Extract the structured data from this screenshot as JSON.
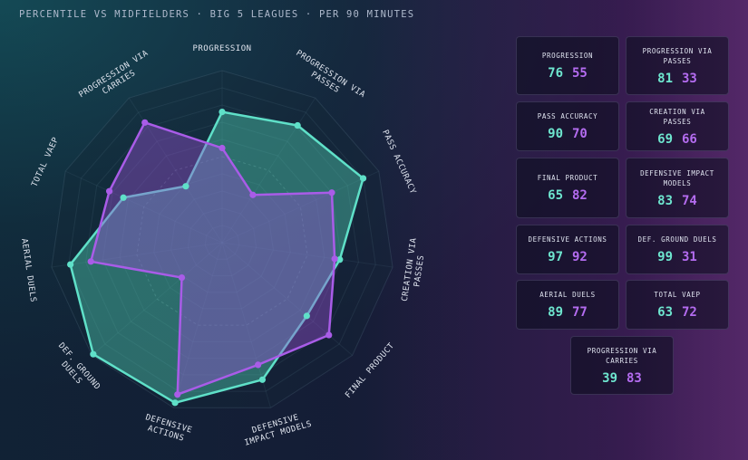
{
  "title": "PERCENTILE VS MIDFIELDERS · BIG 5 LEAGUES · PER 90 MINUTES",
  "colors": {
    "player1": "#5fe0c8",
    "player2": "#a95ce8"
  },
  "chart_data": {
    "type": "radar",
    "axes": [
      "PROGRESSION",
      "PROGRESSION VIA PASSES",
      "PASS ACCURACY",
      "CREATION VIA PASSES",
      "FINAL PRODUCT",
      "DEFENSIVE IMPACT MODELS",
      "DEFENSIVE ACTIONS",
      "DEF. GROUND DUELS",
      "AERIAL DUELS",
      "TOTAL VAEP",
      "PROGRESSION VIA CARRIES"
    ],
    "range": [
      0,
      100
    ],
    "series": [
      {
        "values": [
          76,
          81,
          90,
          69,
          65,
          83,
          97,
          99,
          89,
          63,
          39
        ]
      },
      {
        "values": [
          55,
          33,
          70,
          66,
          82,
          74,
          92,
          31,
          77,
          72,
          83
        ]
      }
    ]
  },
  "cards": [
    {
      "label": "PROGRESSION",
      "v1": "76",
      "v2": "55"
    },
    {
      "label": "PROGRESSION VIA PASSES",
      "v1": "81",
      "v2": "33"
    },
    {
      "label": "PASS ACCURACY",
      "v1": "90",
      "v2": "70"
    },
    {
      "label": "CREATION VIA PASSES",
      "v1": "69",
      "v2": "66"
    },
    {
      "label": "FINAL PRODUCT",
      "v1": "65",
      "v2": "82"
    },
    {
      "label": "DEFENSIVE IMPACT MODELS",
      "v1": "83",
      "v2": "74"
    },
    {
      "label": "DEFENSIVE ACTIONS",
      "v1": "97",
      "v2": "92"
    },
    {
      "label": "DEF. GROUND DUELS",
      "v1": "99",
      "v2": "31"
    },
    {
      "label": "AERIAL DUELS",
      "v1": "89",
      "v2": "77"
    },
    {
      "label": "TOTAL VAEP",
      "v1": "63",
      "v2": "72"
    },
    {
      "label": "PROGRESSION VIA CARRIES",
      "v1": "39",
      "v2": "83"
    }
  ]
}
